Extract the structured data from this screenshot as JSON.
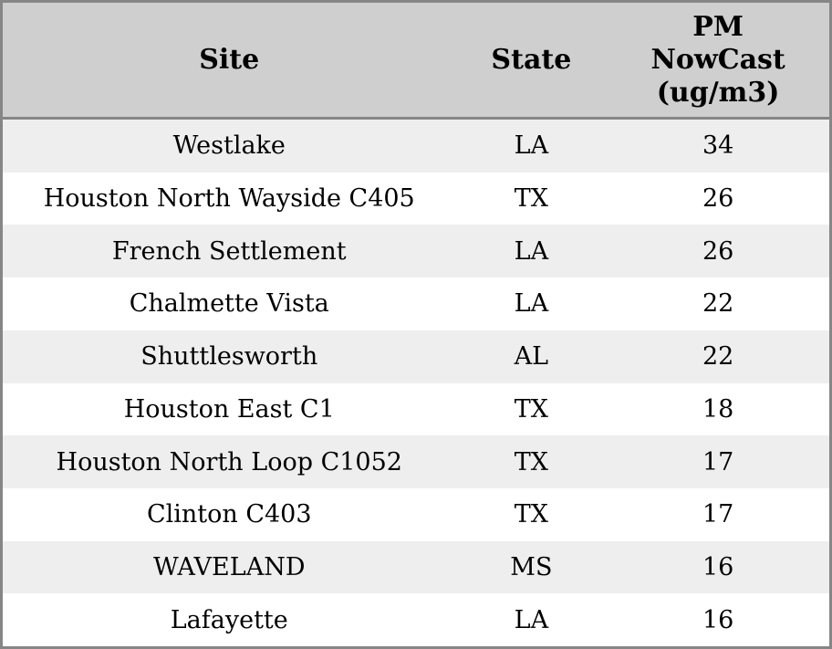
{
  "chart_data": {
    "type": "table",
    "columns": [
      "Site",
      "State",
      "PM NowCast (ug/m3)"
    ],
    "rows": [
      [
        "Westlake",
        "LA",
        34
      ],
      [
        "Houston North Wayside C405",
        "TX",
        26
      ],
      [
        "French Settlement",
        "LA",
        26
      ],
      [
        "Chalmette Vista",
        "LA",
        22
      ],
      [
        "Shuttlesworth",
        "AL",
        22
      ],
      [
        "Houston East C1",
        "TX",
        18
      ],
      [
        "Houston North Loop C1052",
        "TX",
        17
      ],
      [
        "Clinton C403",
        "TX",
        17
      ],
      [
        "WAVELAND",
        "MS",
        16
      ],
      [
        "Lafayette",
        "LA",
        16
      ]
    ],
    "title": "",
    "layout": {
      "striped": true,
      "alignment": "center",
      "header_position": "top"
    }
  },
  "colors": {
    "header_bg": "#cfcfcf",
    "border": "#868686",
    "row_stripe_bg": "#eeeeee",
    "row_bg": "#ffffff",
    "text": "#000000"
  }
}
